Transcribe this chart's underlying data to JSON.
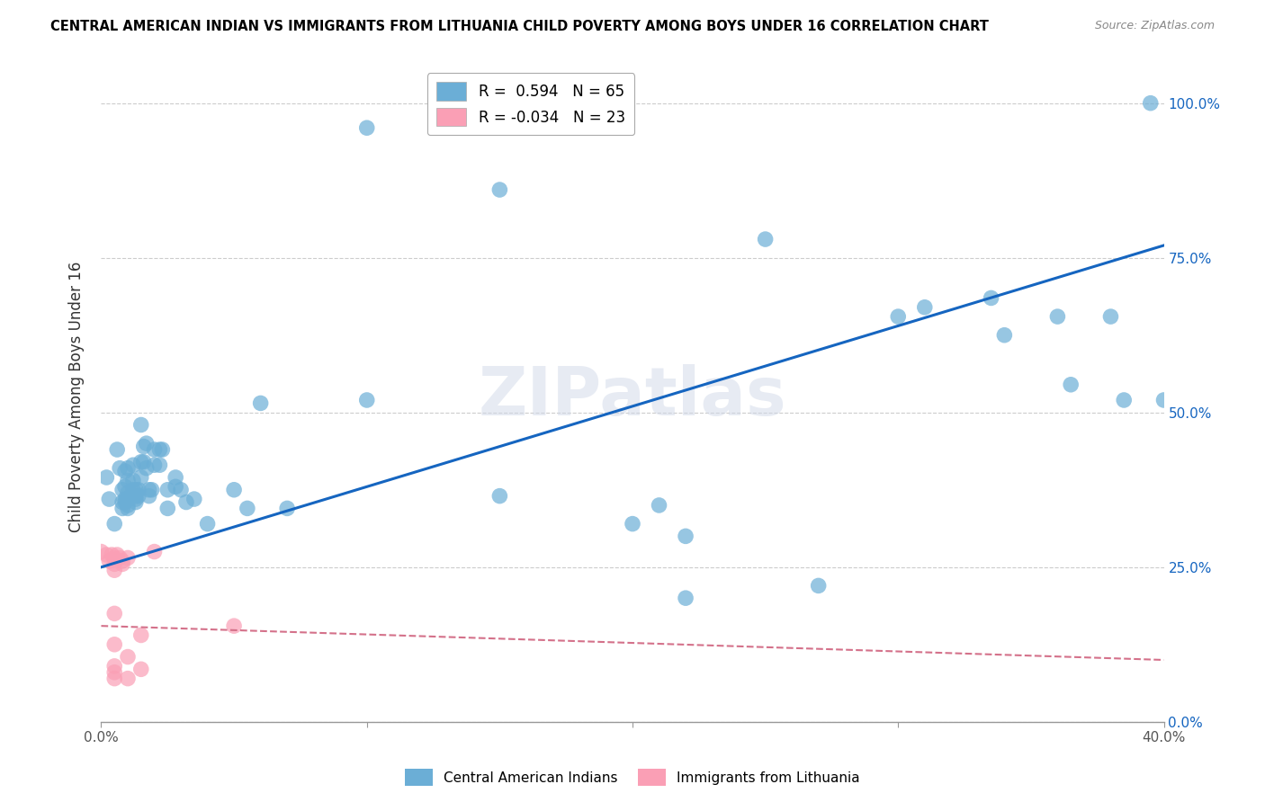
{
  "title": "CENTRAL AMERICAN INDIAN VS IMMIGRANTS FROM LITHUANIA CHILD POVERTY AMONG BOYS UNDER 16 CORRELATION CHART",
  "source": "Source: ZipAtlas.com",
  "ylabel": "Child Poverty Among Boys Under 16",
  "xlim": [
    0.0,
    0.4
  ],
  "ylim": [
    0.0,
    1.05
  ],
  "yticks": [
    0.0,
    0.25,
    0.5,
    0.75,
    1.0
  ],
  "ytick_labels": [
    "0.0%",
    "25.0%",
    "50.0%",
    "75.0%",
    "100.0%"
  ],
  "xticks": [
    0.0,
    0.1,
    0.2,
    0.3,
    0.4
  ],
  "xtick_labels": [
    "0.0%",
    "",
    "",
    "",
    "40.0%"
  ],
  "blue_color": "#6baed6",
  "pink_color": "#fa9fb5",
  "trendline_blue": "#1565C0",
  "trendline_pink": "#d4718a",
  "watermark": "ZIPatlas",
  "blue_trend": [
    0.0,
    0.25,
    0.4,
    0.77
  ],
  "pink_trend": [
    0.0,
    0.155,
    0.4,
    0.1
  ],
  "blue_scatter": [
    [
      0.002,
      0.395
    ],
    [
      0.003,
      0.36
    ],
    [
      0.005,
      0.32
    ],
    [
      0.006,
      0.44
    ],
    [
      0.007,
      0.41
    ],
    [
      0.008,
      0.375
    ],
    [
      0.008,
      0.355
    ],
    [
      0.008,
      0.345
    ],
    [
      0.009,
      0.405
    ],
    [
      0.009,
      0.38
    ],
    [
      0.009,
      0.36
    ],
    [
      0.009,
      0.355
    ],
    [
      0.01,
      0.41
    ],
    [
      0.01,
      0.39
    ],
    [
      0.01,
      0.37
    ],
    [
      0.01,
      0.36
    ],
    [
      0.01,
      0.35
    ],
    [
      0.01,
      0.345
    ],
    [
      0.012,
      0.415
    ],
    [
      0.012,
      0.39
    ],
    [
      0.012,
      0.375
    ],
    [
      0.012,
      0.365
    ],
    [
      0.013,
      0.375
    ],
    [
      0.013,
      0.365
    ],
    [
      0.013,
      0.36
    ],
    [
      0.013,
      0.355
    ],
    [
      0.014,
      0.375
    ],
    [
      0.014,
      0.365
    ],
    [
      0.015,
      0.48
    ],
    [
      0.015,
      0.42
    ],
    [
      0.015,
      0.395
    ],
    [
      0.016,
      0.445
    ],
    [
      0.016,
      0.42
    ],
    [
      0.017,
      0.45
    ],
    [
      0.017,
      0.41
    ],
    [
      0.018,
      0.375
    ],
    [
      0.018,
      0.365
    ],
    [
      0.019,
      0.375
    ],
    [
      0.02,
      0.44
    ],
    [
      0.02,
      0.415
    ],
    [
      0.022,
      0.44
    ],
    [
      0.022,
      0.415
    ],
    [
      0.023,
      0.44
    ],
    [
      0.025,
      0.375
    ],
    [
      0.025,
      0.345
    ],
    [
      0.028,
      0.395
    ],
    [
      0.028,
      0.38
    ],
    [
      0.03,
      0.375
    ],
    [
      0.032,
      0.355
    ],
    [
      0.035,
      0.36
    ],
    [
      0.04,
      0.32
    ],
    [
      0.05,
      0.375
    ],
    [
      0.055,
      0.345
    ],
    [
      0.06,
      0.515
    ],
    [
      0.07,
      0.345
    ],
    [
      0.1,
      0.96
    ],
    [
      0.1,
      0.52
    ],
    [
      0.15,
      0.86
    ],
    [
      0.15,
      0.365
    ],
    [
      0.2,
      0.32
    ],
    [
      0.21,
      0.35
    ],
    [
      0.22,
      0.3
    ],
    [
      0.22,
      0.2
    ],
    [
      0.25,
      0.78
    ],
    [
      0.27,
      0.22
    ],
    [
      0.3,
      0.655
    ],
    [
      0.31,
      0.67
    ],
    [
      0.335,
      0.685
    ],
    [
      0.34,
      0.625
    ],
    [
      0.36,
      0.655
    ],
    [
      0.365,
      0.545
    ],
    [
      0.38,
      0.655
    ],
    [
      0.385,
      0.52
    ],
    [
      0.395,
      1.0
    ],
    [
      0.4,
      0.52
    ]
  ],
  "pink_scatter": [
    [
      0.0,
      0.275
    ],
    [
      0.002,
      0.27
    ],
    [
      0.003,
      0.26
    ],
    [
      0.004,
      0.27
    ],
    [
      0.005,
      0.265
    ],
    [
      0.005,
      0.255
    ],
    [
      0.005,
      0.245
    ],
    [
      0.005,
      0.175
    ],
    [
      0.005,
      0.125
    ],
    [
      0.005,
      0.09
    ],
    [
      0.005,
      0.08
    ],
    [
      0.005,
      0.07
    ],
    [
      0.006,
      0.27
    ],
    [
      0.007,
      0.265
    ],
    [
      0.008,
      0.26
    ],
    [
      0.008,
      0.255
    ],
    [
      0.01,
      0.265
    ],
    [
      0.01,
      0.105
    ],
    [
      0.01,
      0.07
    ],
    [
      0.015,
      0.14
    ],
    [
      0.015,
      0.085
    ],
    [
      0.02,
      0.275
    ],
    [
      0.05,
      0.155
    ]
  ]
}
